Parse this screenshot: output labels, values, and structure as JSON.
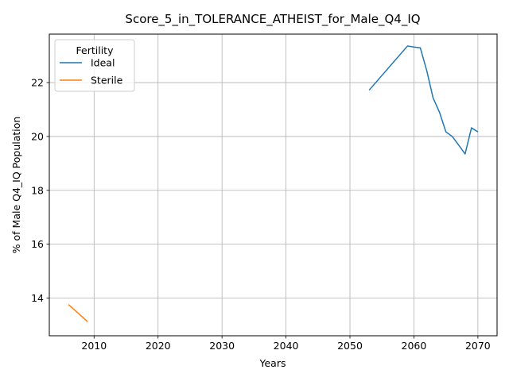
{
  "chart_data": {
    "type": "line",
    "title": "Score_5_in_TOLERANCE_ATHEIST_for_Male_Q4_IQ",
    "xlabel": "Years",
    "ylabel": "% of Male Q4_IQ Population",
    "xlim": [
      2003,
      2073
    ],
    "ylim": [
      12.6,
      23.8
    ],
    "xticks": [
      2010,
      2020,
      2030,
      2040,
      2050,
      2060,
      2070
    ],
    "yticks": [
      14,
      16,
      18,
      20,
      22
    ],
    "grid": true,
    "legend": {
      "title": "Fertility",
      "placement": "top-left"
    },
    "series": [
      {
        "name": "Ideal",
        "color": "#1f77b4",
        "x": [
          2053,
          2059,
          2060,
          2061,
          2062,
          2063,
          2064,
          2065,
          2066,
          2067,
          2068,
          2069,
          2070
        ],
        "y": [
          21.72,
          23.36,
          23.32,
          23.29,
          22.45,
          21.43,
          20.9,
          20.17,
          20.0,
          19.68,
          19.35,
          20.32,
          20.17
        ]
      },
      {
        "name": "Sterile",
        "color": "#ff7f0e",
        "x": [
          2006,
          2009
        ],
        "y": [
          13.76,
          13.12
        ]
      }
    ]
  }
}
